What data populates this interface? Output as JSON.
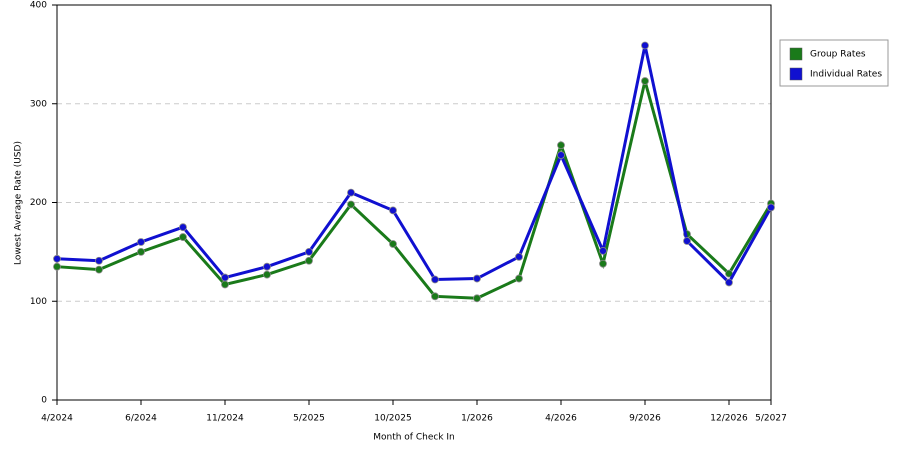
{
  "chart_data": {
    "type": "line",
    "x_label": "Month of Check In",
    "y_label": "Lowest Average Rate (USD)",
    "categories": [
      "4/2024",
      null,
      "6/2024",
      null,
      "11/2024",
      null,
      "5/2025",
      null,
      "10/2025",
      null,
      "1/2026",
      null,
      "4/2026",
      null,
      "9/2026",
      null,
      "12/2026",
      "5/2027"
    ],
    "series": [
      {
        "name": "Group Rates",
        "color": "#1a7a1a",
        "values": [
          135,
          132,
          150,
          165,
          117,
          127,
          141,
          198,
          158,
          105,
          103,
          123,
          258,
          138,
          323,
          168,
          128,
          199
        ]
      },
      {
        "name": "Individual Rates",
        "color": "#1010d0",
        "values": [
          143,
          141,
          160,
          175,
          124,
          135,
          150,
          210,
          192,
          122,
          123,
          145,
          248,
          151,
          359,
          161,
          119,
          195
        ]
      }
    ],
    "ylim": [
      0,
      400
    ],
    "yticks": [
      0,
      100,
      200,
      300,
      400
    ],
    "grid": true
  }
}
